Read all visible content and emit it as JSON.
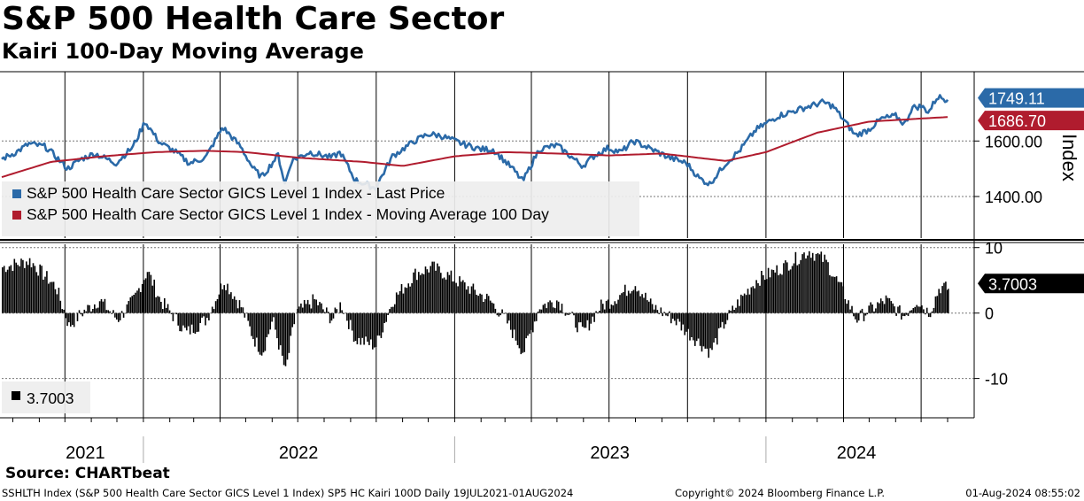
{
  "header": {
    "title": "S&P 500 Health Care Sector",
    "subtitle": "Kairi 100-Day Moving Average"
  },
  "colors": {
    "price": "#2b6aa8",
    "ma": "#b01c2e",
    "kairi": "#000000",
    "grid": "#000000",
    "legend_bg": "#eeeeee"
  },
  "chart_data": [
    {
      "type": "line",
      "title": "S&P 500 Health Care Sector",
      "ylabel": "Index",
      "ylim": [
        1250,
        1850
      ],
      "yticks": [
        1400,
        1600
      ],
      "ytick_labels": [
        "1400.00",
        "1600.00"
      ],
      "x_range": [
        "2021-07-19",
        "2024-08-01"
      ],
      "series": [
        {
          "name": "S&P 500 Health Care Sector GICS Level 1 Index - Last Price",
          "color": "#2b6aa8",
          "last_value_label": "1749.11",
          "anchors": [
            [
              "2021-07-19",
              1535
            ],
            [
              "2021-08-05",
              1560
            ],
            [
              "2021-08-20",
              1590
            ],
            [
              "2021-09-08",
              1580
            ],
            [
              "2021-09-20",
              1545
            ],
            [
              "2021-10-04",
              1500
            ],
            [
              "2021-10-20",
              1535
            ],
            [
              "2021-11-05",
              1555
            ],
            [
              "2021-11-30",
              1520
            ],
            [
              "2021-12-20",
              1580
            ],
            [
              "2022-01-03",
              1670
            ],
            [
              "2022-01-20",
              1595
            ],
            [
              "2022-02-08",
              1560
            ],
            [
              "2022-02-24",
              1520
            ],
            [
              "2022-03-15",
              1540
            ],
            [
              "2022-04-04",
              1650
            ],
            [
              "2022-04-25",
              1580
            ],
            [
              "2022-05-10",
              1500
            ],
            [
              "2022-05-20",
              1470
            ],
            [
              "2022-06-08",
              1550
            ],
            [
              "2022-06-16",
              1445
            ],
            [
              "2022-06-24",
              1530
            ],
            [
              "2022-07-15",
              1560
            ],
            [
              "2022-08-10",
              1540
            ],
            [
              "2022-08-20",
              1560
            ],
            [
              "2022-09-06",
              1460
            ],
            [
              "2022-09-30",
              1430
            ],
            [
              "2022-10-20",
              1545
            ],
            [
              "2022-11-15",
              1600
            ],
            [
              "2022-12-01",
              1625
            ],
            [
              "2022-12-15",
              1620
            ],
            [
              "2023-01-10",
              1590
            ],
            [
              "2023-02-01",
              1570
            ],
            [
              "2023-02-15",
              1570
            ],
            [
              "2023-03-10",
              1500
            ],
            [
              "2023-03-22",
              1455
            ],
            [
              "2023-04-10",
              1570
            ],
            [
              "2023-05-01",
              1585
            ],
            [
              "2023-05-31",
              1510
            ],
            [
              "2023-06-15",
              1550
            ],
            [
              "2023-06-30",
              1575
            ],
            [
              "2023-07-15",
              1560
            ],
            [
              "2023-07-30",
              1600
            ],
            [
              "2023-08-20",
              1570
            ],
            [
              "2023-09-10",
              1540
            ],
            [
              "2023-09-30",
              1520
            ],
            [
              "2023-10-15",
              1465
            ],
            [
              "2023-10-27",
              1445
            ],
            [
              "2023-11-15",
              1520
            ],
            [
              "2023-12-01",
              1565
            ],
            [
              "2023-12-20",
              1640
            ],
            [
              "2024-01-15",
              1690
            ],
            [
              "2024-02-15",
              1720
            ],
            [
              "2024-03-08",
              1740
            ],
            [
              "2024-03-20",
              1725
            ],
            [
              "2024-04-15",
              1620
            ],
            [
              "2024-04-30",
              1640
            ],
            [
              "2024-05-15",
              1680
            ],
            [
              "2024-06-01",
              1690
            ],
            [
              "2024-06-12",
              1660
            ],
            [
              "2024-06-20",
              1720
            ],
            [
              "2024-07-01",
              1725
            ],
            [
              "2024-07-10",
              1705
            ],
            [
              "2024-07-20",
              1760
            ],
            [
              "2024-08-01",
              1749.11
            ]
          ]
        },
        {
          "name": "S&P 500 Health Care Sector GICS Level 1 Index - Moving Average 100 Day",
          "color": "#b01c2e",
          "last_value_label": "1686.70",
          "anchors": [
            [
              "2021-07-19",
              1470
            ],
            [
              "2021-09-15",
              1525
            ],
            [
              "2021-11-15",
              1545
            ],
            [
              "2022-01-15",
              1560
            ],
            [
              "2022-03-15",
              1565
            ],
            [
              "2022-05-01",
              1560
            ],
            [
              "2022-07-01",
              1540
            ],
            [
              "2022-09-15",
              1525
            ],
            [
              "2022-11-01",
              1510
            ],
            [
              "2023-01-01",
              1545
            ],
            [
              "2023-03-01",
              1560
            ],
            [
              "2023-05-01",
              1555
            ],
            [
              "2023-07-01",
              1548
            ],
            [
              "2023-09-01",
              1555
            ],
            [
              "2023-11-15",
              1528
            ],
            [
              "2024-01-01",
              1560
            ],
            [
              "2024-03-01",
              1630
            ],
            [
              "2024-05-01",
              1670
            ],
            [
              "2024-08-01",
              1686.7
            ]
          ]
        }
      ]
    },
    {
      "type": "bar",
      "title": "Kairi 100-Day Moving Average",
      "ylim": [
        -16,
        10.5
      ],
      "yticks": [
        10,
        0,
        -10
      ],
      "ytick_labels": [
        "10",
        "0",
        "-10"
      ],
      "x_range": [
        "2021-07-19",
        "2024-08-01"
      ],
      "series": [
        {
          "name": "3.7003",
          "color": "#000000",
          "last_value_label": "3.7003",
          "anchors": [
            [
              "2021-07-19",
              7
            ],
            [
              "2021-08-20",
              8
            ],
            [
              "2021-09-20",
              4
            ],
            [
              "2021-10-05",
              -2
            ],
            [
              "2021-10-20",
              0
            ],
            [
              "2021-11-10",
              2
            ],
            [
              "2021-12-01",
              -1
            ],
            [
              "2021-12-20",
              2
            ],
            [
              "2022-01-05",
              6.5
            ],
            [
              "2022-01-20",
              2
            ],
            [
              "2022-02-20",
              -3
            ],
            [
              "2022-03-15",
              -1
            ],
            [
              "2022-04-05",
              5
            ],
            [
              "2022-04-25",
              1
            ],
            [
              "2022-05-10",
              -4
            ],
            [
              "2022-05-20",
              -6
            ],
            [
              "2022-06-01",
              -1
            ],
            [
              "2022-06-16",
              -9
            ],
            [
              "2022-06-28",
              0
            ],
            [
              "2022-07-20",
              2
            ],
            [
              "2022-08-10",
              -1
            ],
            [
              "2022-08-20",
              1.5
            ],
            [
              "2022-09-06",
              -4
            ],
            [
              "2022-09-30",
              -5
            ],
            [
              "2022-10-20",
              2
            ],
            [
              "2022-11-15",
              6
            ],
            [
              "2022-12-05",
              7
            ],
            [
              "2022-12-20",
              6
            ],
            [
              "2023-01-15",
              4
            ],
            [
              "2023-02-10",
              2
            ],
            [
              "2023-03-01",
              -1
            ],
            [
              "2023-03-22",
              -6
            ],
            [
              "2023-04-10",
              1
            ],
            [
              "2023-05-01",
              2
            ],
            [
              "2023-05-31",
              -3
            ],
            [
              "2023-06-20",
              1
            ],
            [
              "2023-07-05",
              2
            ],
            [
              "2023-07-31",
              4.5
            ],
            [
              "2023-08-20",
              1
            ],
            [
              "2023-09-15",
              -1
            ],
            [
              "2023-10-01",
              -3
            ],
            [
              "2023-10-27",
              -6
            ],
            [
              "2023-11-15",
              -1
            ],
            [
              "2023-12-01",
              2
            ],
            [
              "2023-12-20",
              5
            ],
            [
              "2024-01-20",
              7
            ],
            [
              "2024-02-20",
              9.5
            ],
            [
              "2024-03-10",
              8
            ],
            [
              "2024-04-01",
              3
            ],
            [
              "2024-04-15",
              -1
            ],
            [
              "2024-05-01",
              0.5
            ],
            [
              "2024-05-20",
              2
            ],
            [
              "2024-06-10",
              -0.5
            ],
            [
              "2024-06-25",
              2
            ],
            [
              "2024-07-10",
              0
            ],
            [
              "2024-07-22",
              4
            ],
            [
              "2024-08-01",
              3.7003
            ]
          ]
        }
      ]
    }
  ],
  "xaxis": {
    "year_labels": [
      "2021",
      "2022",
      "2023",
      "2024"
    ]
  },
  "legend_top": [
    "S&P 500 Health Care Sector GICS Level 1 Index - Last Price",
    "S&P 500 Health Care Sector GICS Level 1 Index - Moving Average 100 Day"
  ],
  "legend_bottom": [
    "3.7003"
  ],
  "source": "Source: CHARTbeat",
  "footer": {
    "left": "SSHLTH Index (S&P 500 Health Care Sector GICS Level 1 Index) SP5 HC Kairi 100D  Daily 19JUL2021-01AUG2024",
    "middle": "Copyright© 2024 Bloomberg Finance L.P.",
    "right": "01-Aug-2024 08:55:02"
  }
}
